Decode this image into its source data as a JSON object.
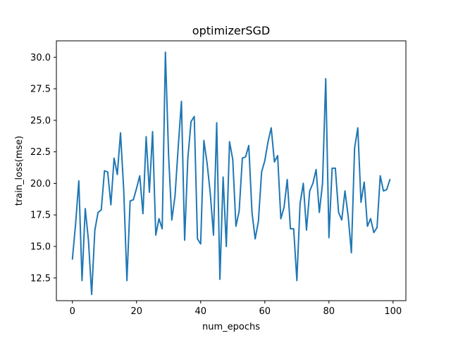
{
  "chart_data": {
    "type": "line",
    "title": "optimizerSGD",
    "xlabel": "num_epochs",
    "ylabel": "train_loss(mse)",
    "xlim": [
      -5,
      104
    ],
    "ylim": [
      10.7,
      31.3
    ],
    "x_ticks": [
      0,
      20,
      40,
      60,
      80,
      100
    ],
    "x_tick_labels": [
      "0",
      "20",
      "40",
      "60",
      "80",
      "100"
    ],
    "y_ticks": [
      12.5,
      15.0,
      17.5,
      20.0,
      22.5,
      25.0,
      27.5,
      30.0
    ],
    "y_tick_labels": [
      "12.5",
      "15.0",
      "17.5",
      "20.0",
      "22.5",
      "25.0",
      "27.5",
      "30.0"
    ],
    "grid": false,
    "legend": "none",
    "line_color": "#1f77b4",
    "series": [
      {
        "x": [
          0,
          1,
          2,
          3,
          4,
          5,
          6,
          7,
          8,
          9,
          10,
          11,
          12,
          13,
          14,
          15,
          16,
          17,
          18,
          19,
          20,
          21,
          22,
          23,
          24,
          25,
          26,
          27,
          28,
          29,
          30,
          31,
          32,
          33,
          34,
          35,
          36,
          37,
          38,
          39,
          40,
          41,
          42,
          43,
          44,
          45,
          46,
          47,
          48,
          49,
          50,
          51,
          52,
          53,
          54,
          55,
          56,
          57,
          58,
          59,
          60,
          61,
          62,
          63,
          64,
          65,
          66,
          67,
          68,
          69,
          70,
          71,
          72,
          73,
          74,
          75,
          76,
          77,
          78,
          79,
          80,
          81,
          82,
          83,
          84,
          85,
          86,
          87,
          88,
          89,
          90,
          91,
          92,
          93,
          94,
          95,
          96,
          97,
          98,
          99
        ],
        "values": [
          14.0,
          16.8,
          20.2,
          12.3,
          18.0,
          15.5,
          11.2,
          16.3,
          17.7,
          17.9,
          21.0,
          20.9,
          18.3,
          22.0,
          20.7,
          24.0,
          19.5,
          12.3,
          18.6,
          18.7,
          19.6,
          20.6,
          17.6,
          23.7,
          19.3,
          24.1,
          15.9,
          17.2,
          16.4,
          30.4,
          22.2,
          17.1,
          19.0,
          22.9,
          26.5,
          15.5,
          22.0,
          24.9,
          25.3,
          15.6,
          15.2,
          23.4,
          21.6,
          19.2,
          15.9,
          24.8,
          12.4,
          20.5,
          15.0,
          23.3,
          21.9,
          16.6,
          17.8,
          22.0,
          22.1,
          23.0,
          17.7,
          15.6,
          17.0,
          20.9,
          21.8,
          23.3,
          24.4,
          21.7,
          22.2,
          17.2,
          18.1,
          20.3,
          16.4,
          16.4,
          12.3,
          18.4,
          20.0,
          16.3,
          19.4,
          20.0,
          21.1,
          17.7,
          20.0,
          28.3,
          15.7,
          21.2,
          21.2,
          17.7,
          17.1,
          19.4,
          17.4,
          14.5,
          22.8,
          24.4,
          18.5,
          20.1,
          16.6,
          17.2,
          16.1,
          16.5,
          20.6,
          19.4,
          19.5,
          20.3
        ]
      }
    ]
  }
}
